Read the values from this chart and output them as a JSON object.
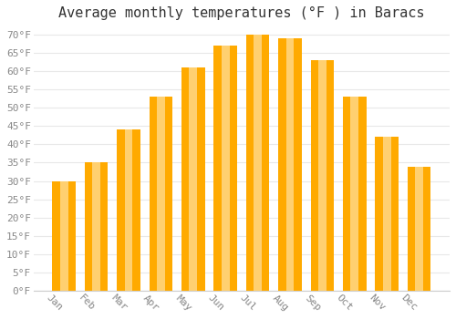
{
  "title": "Average monthly temperatures (°F ) in Baracs",
  "months": [
    "Jan",
    "Feb",
    "Mar",
    "Apr",
    "May",
    "Jun",
    "Jul",
    "Aug",
    "Sep",
    "Oct",
    "Nov",
    "Dec"
  ],
  "values": [
    30,
    35,
    44,
    53,
    61,
    67,
    70,
    69,
    63,
    53,
    42,
    34
  ],
  "bar_color": "#FFAA00",
  "bar_edge_color": "#FFD070",
  "ylim": [
    0,
    72
  ],
  "yticks": [
    0,
    5,
    10,
    15,
    20,
    25,
    30,
    35,
    40,
    45,
    50,
    55,
    60,
    65,
    70
  ],
  "background_color": "#FFFFFF",
  "grid_color": "#E8E8E8",
  "title_fontsize": 11,
  "tick_fontsize": 8,
  "xlabel_rotation": -45
}
